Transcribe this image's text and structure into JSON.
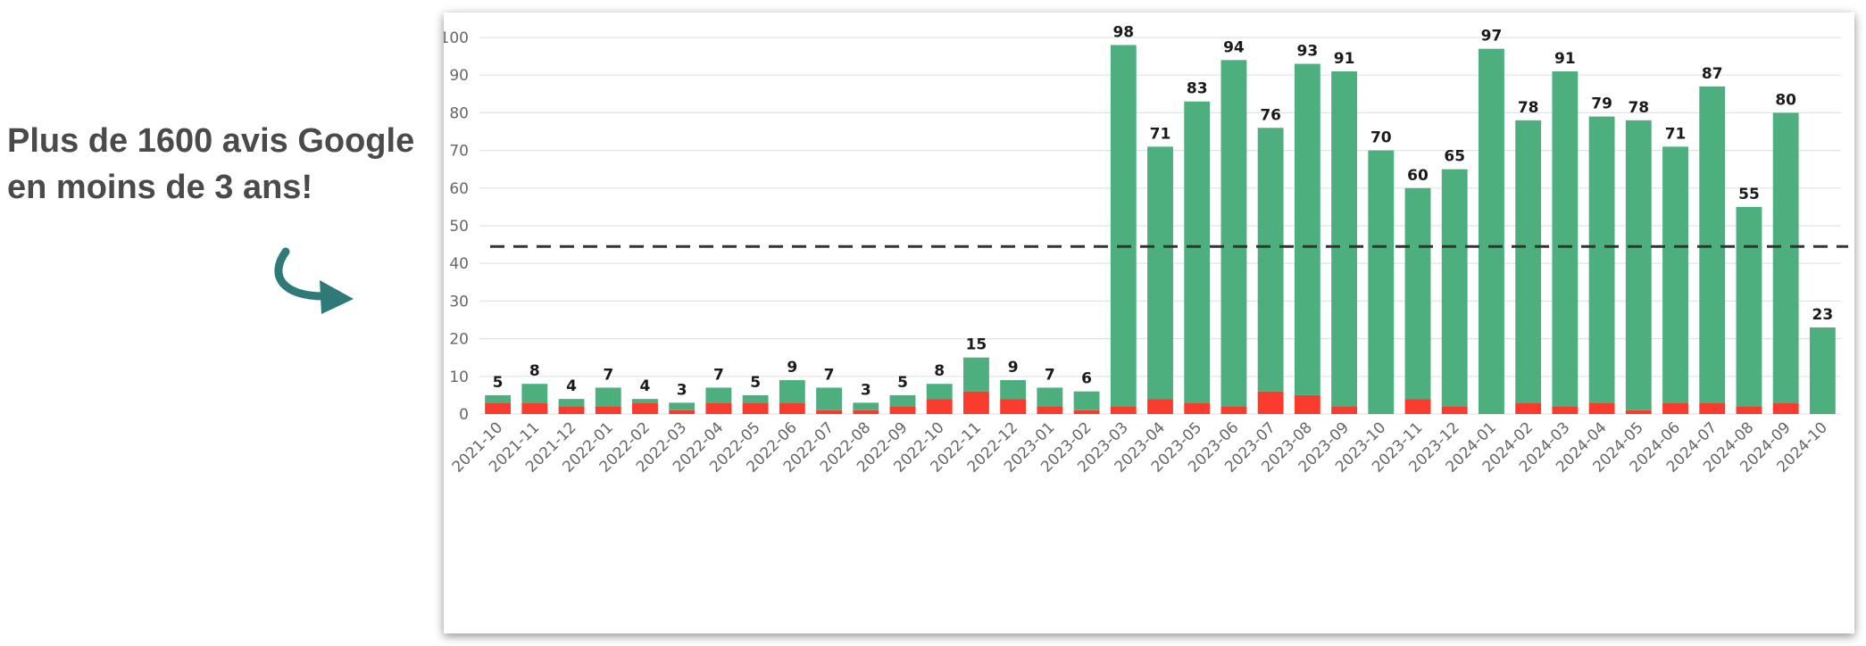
{
  "headline": {
    "line1": "Plus de 1600 avis Google",
    "line2": "en moins de 3 ans!"
  },
  "arrow_icon": "curved-arrow-icon",
  "colors": {
    "positive": "#4caf7d",
    "negative": "#f83b2d",
    "grid": "#e3e3e3",
    "arrow": "#2f7a78",
    "reference_line": "#333333"
  },
  "chart_data": {
    "type": "bar",
    "stacked": true,
    "title": "",
    "xlabel": "",
    "ylabel": "",
    "ylim": [
      0,
      100
    ],
    "yticks": [
      0,
      10,
      20,
      30,
      40,
      50,
      60,
      70,
      80,
      90,
      100
    ],
    "grid": true,
    "reference_line": 44.5,
    "categories": [
      "2021-10",
      "2021-11",
      "2021-12",
      "2022-01",
      "2022-02",
      "2022-03",
      "2022-04",
      "2022-05",
      "2022-06",
      "2022-07",
      "2022-08",
      "2022-09",
      "2022-10",
      "2022-11",
      "2022-12",
      "2023-01",
      "2023-02",
      "2023-03",
      "2023-04",
      "2023-05",
      "2023-06",
      "2023-07",
      "2023-08",
      "2023-09",
      "2023-10",
      "2023-11",
      "2023-12",
      "2024-01",
      "2024-02",
      "2024-03",
      "2024-04",
      "2024-05",
      "2024-06",
      "2024-07",
      "2024-08",
      "2024-09",
      "2024-10"
    ],
    "totals": [
      5,
      8,
      4,
      7,
      4,
      3,
      7,
      5,
      9,
      7,
      3,
      5,
      8,
      15,
      9,
      7,
      6,
      98,
      71,
      83,
      94,
      76,
      93,
      91,
      70,
      60,
      65,
      97,
      78,
      91,
      79,
      78,
      71,
      87,
      55,
      80,
      23
    ],
    "series": [
      {
        "values": [
          3,
          3,
          2,
          2,
          3,
          1,
          3,
          3,
          3,
          1,
          1,
          2,
          4,
          6,
          4,
          2,
          1,
          2,
          4,
          3,
          2,
          6,
          5,
          2,
          0,
          4,
          2,
          0,
          3,
          2,
          3,
          1,
          3,
          3,
          2,
          3,
          0
        ]
      },
      {
        "values": [
          2,
          5,
          2,
          5,
          1,
          2,
          4,
          2,
          6,
          6,
          2,
          3,
          4,
          9,
          5,
          5,
          5,
          96,
          67,
          80,
          92,
          70,
          88,
          89,
          70,
          56,
          63,
          97,
          75,
          89,
          76,
          77,
          68,
          84,
          53,
          77,
          23
        ]
      }
    ]
  }
}
